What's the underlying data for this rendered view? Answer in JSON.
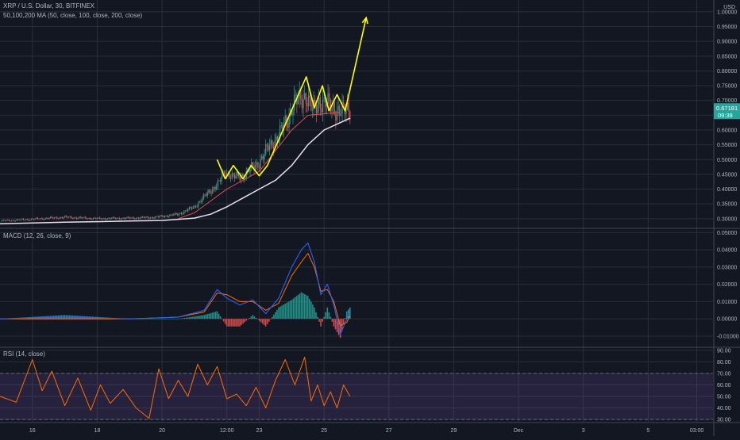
{
  "header": {
    "symbol_title": "XRP / U.S. Dollar, 30, BITFINEX",
    "ma_legend": "50,100,200 MA (50, close, 100, close, 200, close)",
    "currency": "USD"
  },
  "price_badge": {
    "price": "0.67181",
    "countdown": "09:38"
  },
  "colors": {
    "background": "#131722",
    "grid": "#2a2e39",
    "text": "#b2b5be",
    "candle_up": "#26a69a",
    "candle_down": "#ef5350",
    "ma200": "#e9dfee",
    "ma_fast": "#ef5350",
    "drawing": "#ffff00",
    "macd": "#2962ff",
    "signal": "#ff6d00",
    "rsi": "#ff6d00",
    "rsi_band": "#7e57c2",
    "badge": "#26a69a"
  },
  "chart_data": [
    {
      "type": "candlestick",
      "panel": "price",
      "title": "XRP / U.S. Dollar, 30, BITFINEX",
      "x_tick_labels": [
        "16",
        "18",
        "20",
        "12:00",
        "23",
        "25",
        "27",
        "29",
        "Dec",
        "3",
        "5",
        "03:00"
      ],
      "y_tick_labels": [
        "0.30000",
        "0.35000",
        "0.40000",
        "0.45000",
        "0.50000",
        "0.55000",
        "0.60000",
        "0.65000",
        "0.70000",
        "0.75000",
        "0.80000",
        "0.85000",
        "0.90000",
        "0.95000",
        "1.00000"
      ],
      "ylim": [
        0.27,
        1.04
      ],
      "x_day_span": [
        15.0,
        37.0
      ],
      "close_series": {
        "x": [
          15.0,
          16.0,
          17.0,
          18.0,
          19.0,
          19.8,
          20.5,
          21.0,
          21.4,
          21.75,
          21.95,
          22.2,
          22.5,
          22.75,
          23.0,
          23.3,
          23.6,
          23.9,
          24.05,
          24.25,
          24.45,
          24.65,
          24.85,
          25.05,
          25.3,
          25.55,
          25.8
        ],
        "y": [
          0.292,
          0.298,
          0.305,
          0.3,
          0.302,
          0.305,
          0.315,
          0.34,
          0.385,
          0.42,
          0.46,
          0.44,
          0.445,
          0.47,
          0.49,
          0.545,
          0.58,
          0.645,
          0.69,
          0.7,
          0.72,
          0.66,
          0.7,
          0.69,
          0.675,
          0.66,
          0.675
        ]
      },
      "ma_series": [
        {
          "x": [
            15.0,
            17.0,
            19.0,
            20.0,
            21.0,
            21.5,
            22.0,
            22.5,
            23.0,
            23.5,
            24.0,
            24.5,
            25.0,
            25.5,
            25.8
          ],
          "y": [
            0.283,
            0.288,
            0.292,
            0.294,
            0.302,
            0.315,
            0.34,
            0.37,
            0.4,
            0.43,
            0.48,
            0.55,
            0.6,
            0.625,
            0.64
          ]
        },
        {
          "x": [
            20.5,
            21.0,
            21.5,
            22.0,
            22.5,
            23.0,
            23.5,
            24.0,
            24.5,
            25.0,
            25.5
          ],
          "y": [
            0.3,
            0.32,
            0.36,
            0.4,
            0.43,
            0.46,
            0.53,
            0.6,
            0.65,
            0.655,
            0.66
          ]
        }
      ],
      "drawn_path": {
        "x": [
          21.7,
          21.95,
          22.2,
          22.5,
          22.75,
          23.0,
          23.25,
          24.45,
          24.7,
          24.95,
          25.15,
          25.4,
          25.65,
          26.3
        ],
        "y": [
          0.5,
          0.435,
          0.48,
          0.435,
          0.48,
          0.445,
          0.48,
          0.78,
          0.675,
          0.75,
          0.665,
          0.72,
          0.665,
          0.98
        ]
      }
    },
    {
      "type": "line",
      "panel": "macd",
      "title": "MACD (12, 26, close, 9)",
      "y_tick_labels": [
        "-0.01000",
        "0.00000",
        "0.01000",
        "0.02000",
        "0.03000",
        "0.04000",
        "0.05000"
      ],
      "ylim": [
        -0.016,
        0.052
      ],
      "macd_x": [
        15.0,
        17.0,
        19.0,
        20.5,
        21.3,
        21.7,
        22.0,
        22.4,
        22.8,
        23.2,
        23.6,
        24.0,
        24.3,
        24.5,
        24.7,
        24.9,
        25.1,
        25.3,
        25.5,
        25.7,
        25.8
      ],
      "macd": [
        0.0,
        0.001,
        0.0,
        0.001,
        0.005,
        0.017,
        0.012,
        0.008,
        0.011,
        0.003,
        0.012,
        0.03,
        0.04,
        0.044,
        0.033,
        0.014,
        0.02,
        0.008,
        -0.009,
        0.0,
        0.005
      ],
      "signal": [
        0.0,
        0.0,
        0.0,
        0.001,
        0.004,
        0.015,
        0.014,
        0.01,
        0.01,
        0.005,
        0.009,
        0.025,
        0.033,
        0.038,
        0.03,
        0.016,
        0.017,
        0.01,
        -0.004,
        -0.002,
        0.002
      ]
    },
    {
      "type": "line",
      "panel": "rsi",
      "title": "RSI (14, close)",
      "y_tick_labels": [
        "30.00",
        "40.00",
        "50.00",
        "60.00",
        "70.00",
        "80.00",
        "90.00"
      ],
      "ylim": [
        28,
        92
      ],
      "bands": [
        30,
        70
      ],
      "x": [
        15.0,
        15.5,
        16.0,
        16.3,
        16.6,
        17.0,
        17.4,
        17.8,
        18.1,
        18.4,
        18.8,
        19.2,
        19.6,
        19.9,
        20.2,
        20.5,
        20.8,
        21.1,
        21.4,
        21.7,
        22.0,
        22.3,
        22.6,
        22.9,
        23.2,
        23.5,
        23.8,
        24.1,
        24.4,
        24.6,
        24.8,
        25.0,
        25.2,
        25.4,
        25.6,
        25.8
      ],
      "y": [
        50,
        45,
        82,
        55,
        72,
        42,
        66,
        38,
        60,
        44,
        56,
        40,
        31,
        74,
        48,
        64,
        50,
        78,
        60,
        76,
        48,
        52,
        42,
        58,
        40,
        64,
        82,
        60,
        84,
        46,
        60,
        42,
        54,
        40,
        60,
        50
      ]
    }
  ]
}
